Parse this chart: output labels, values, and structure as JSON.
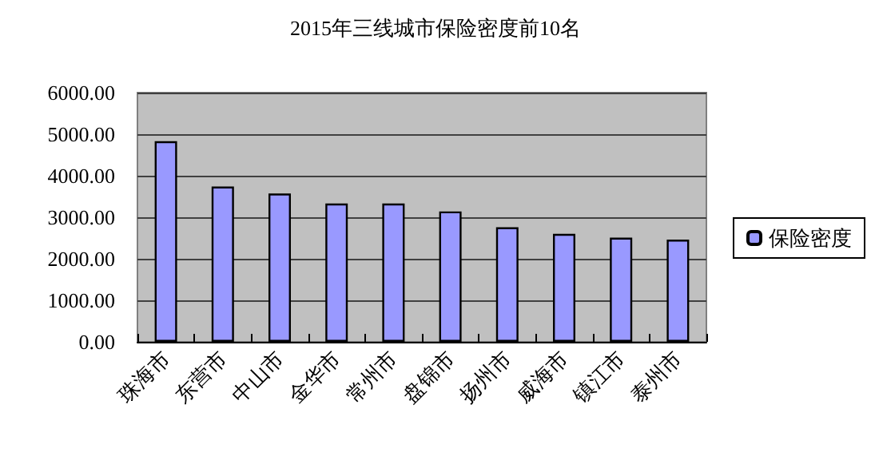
{
  "chart_data": {
    "type": "bar",
    "title": "2015年三线城市保险密度前10名",
    "categories": [
      "珠海市",
      "东营市",
      "中山市",
      "金华市",
      "常州市",
      "盘锦市",
      "扬州市",
      "威海市",
      "镇江市",
      "泰州市"
    ],
    "series": [
      {
        "name": "保险密度",
        "color": "#9999ff",
        "values": [
          4830,
          3740,
          3570,
          3330,
          3330,
          3140,
          2760,
          2600,
          2510,
          2460
        ]
      }
    ],
    "ylim": [
      0,
      6000
    ],
    "yticks": [
      {
        "value": 0,
        "label": "0.00"
      },
      {
        "value": 1000,
        "label": "1000.00"
      },
      {
        "value": 2000,
        "label": "2000.00"
      },
      {
        "value": 3000,
        "label": "3000.00"
      },
      {
        "value": 4000,
        "label": "4000.00"
      },
      {
        "value": 5000,
        "label": "5000.00"
      },
      {
        "value": 6000,
        "label": "6000.00"
      }
    ],
    "grid": "y",
    "legend": "right"
  }
}
